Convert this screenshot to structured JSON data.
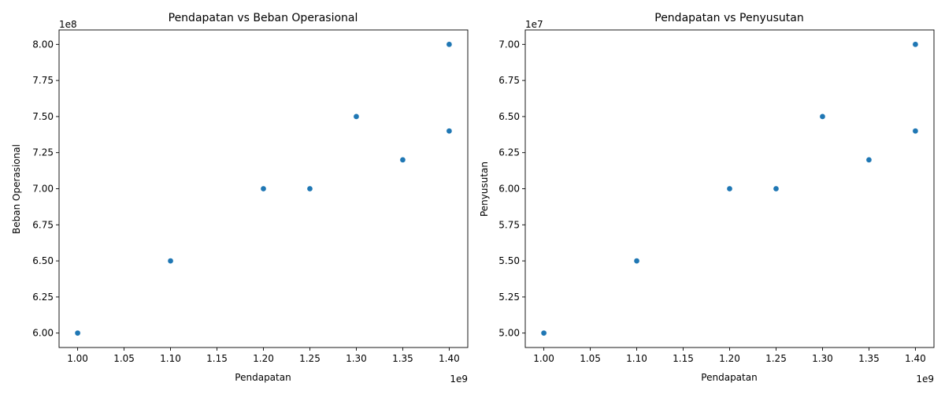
{
  "chart_data": [
    {
      "type": "scatter",
      "title": "Pendapatan vs Beban Operasional",
      "xlabel": "Pendapatan",
      "ylabel": "Beban Operasional",
      "x_multiplier": "1e9",
      "y_multiplier": "1e8",
      "xlim": [
        0.98,
        1.42
      ],
      "ylim": [
        5.9,
        8.1
      ],
      "x_ticks": [
        "1.00",
        "1.05",
        "1.10",
        "1.15",
        "1.20",
        "1.25",
        "1.30",
        "1.35",
        "1.40"
      ],
      "y_ticks": [
        "6.00",
        "6.25",
        "6.50",
        "6.75",
        "7.00",
        "7.25",
        "7.50",
        "7.75",
        "8.00"
      ],
      "grid": false,
      "color": "#1f77b4",
      "points": [
        {
          "x": 1.0,
          "y": 6.0
        },
        {
          "x": 1.1,
          "y": 6.5
        },
        {
          "x": 1.2,
          "y": 7.0
        },
        {
          "x": 1.25,
          "y": 7.0
        },
        {
          "x": 1.3,
          "y": 7.5
        },
        {
          "x": 1.35,
          "y": 7.2
        },
        {
          "x": 1.4,
          "y": 7.4
        },
        {
          "x": 1.4,
          "y": 8.0
        }
      ]
    },
    {
      "type": "scatter",
      "title": "Pendapatan vs Penyusutan",
      "xlabel": "Pendapatan",
      "ylabel": "Penyusutan",
      "x_multiplier": "1e9",
      "y_multiplier": "1e7",
      "xlim": [
        0.98,
        1.42
      ],
      "ylim": [
        4.9,
        7.1
      ],
      "x_ticks": [
        "1.00",
        "1.05",
        "1.10",
        "1.15",
        "1.20",
        "1.25",
        "1.30",
        "1.35",
        "1.40"
      ],
      "y_ticks": [
        "5.00",
        "5.25",
        "5.50",
        "5.75",
        "6.00",
        "6.25",
        "6.50",
        "6.75",
        "7.00"
      ],
      "grid": false,
      "color": "#1f77b4",
      "points": [
        {
          "x": 1.0,
          "y": 5.0
        },
        {
          "x": 1.1,
          "y": 5.5
        },
        {
          "x": 1.2,
          "y": 6.0
        },
        {
          "x": 1.25,
          "y": 6.0
        },
        {
          "x": 1.3,
          "y": 6.5
        },
        {
          "x": 1.35,
          "y": 6.2
        },
        {
          "x": 1.4,
          "y": 6.4
        },
        {
          "x": 1.4,
          "y": 7.0
        }
      ]
    }
  ]
}
